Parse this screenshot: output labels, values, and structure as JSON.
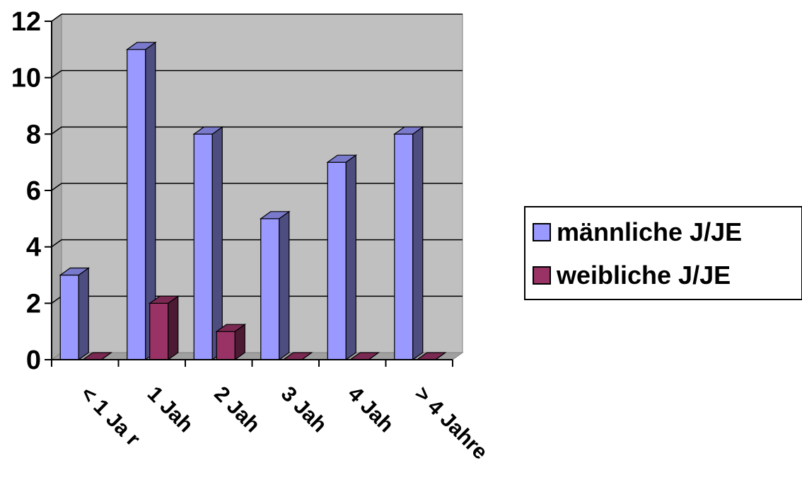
{
  "chart_data": {
    "type": "bar",
    "categories": [
      "< 1 Jahr",
      "1 Jahr",
      "2 Jahre",
      "3 Jahre",
      "4 Jahre",
      "> 4 Jahre"
    ],
    "category_labels_visible": [
      "< 1 Ja r",
      "1 Jah",
      "2 Jah",
      "3 Jah",
      "4 Jah",
      "> 4 Jahre"
    ],
    "series": [
      {
        "name": "männliche J/JE",
        "values": [
          3,
          11,
          8,
          5,
          7,
          8
        ],
        "color": "#9999ff"
      },
      {
        "name": "weibliche J/JE",
        "values": [
          0,
          2,
          1,
          0,
          0,
          0
        ],
        "color": "#993366"
      }
    ],
    "yticks": [
      "0",
      "2",
      "4",
      "6",
      "8",
      "10",
      "12"
    ],
    "ylim": [
      0,
      12
    ],
    "grid": true,
    "plot_background": "#c0c0c0",
    "legend_position": "right"
  },
  "legend": {
    "items": [
      {
        "label": "männliche J/JE",
        "color": "#9999ff"
      },
      {
        "label": "weibliche J/JE",
        "color": "#993366"
      }
    ]
  }
}
